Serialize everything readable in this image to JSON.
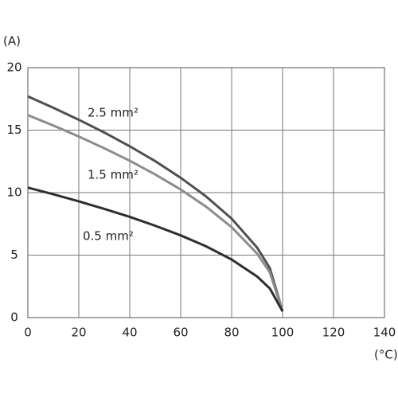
{
  "chart_data": {
    "type": "line",
    "y_label": "(A)",
    "x_label": "(°C)",
    "xlim": [
      0,
      140
    ],
    "xticks": [
      0,
      20,
      40,
      60,
      80,
      100,
      120,
      140
    ],
    "ylim": [
      0,
      20
    ],
    "yticks": [
      0,
      5,
      10,
      15,
      20
    ],
    "grid": true,
    "x": [
      0,
      10,
      20,
      30,
      40,
      50,
      60,
      70,
      80,
      90,
      95,
      100
    ],
    "series": [
      {
        "name": "2.5 mm²",
        "color": "#505050",
        "values": [
          17.7,
          16.79,
          15.83,
          14.81,
          13.71,
          12.52,
          11.19,
          9.69,
          7.92,
          5.6,
          3.96,
          0.5
        ]
      },
      {
        "name": "1.5 mm²",
        "color": "#8c8c8c",
        "values": [
          16.2,
          15.37,
          14.49,
          13.55,
          12.55,
          11.45,
          10.25,
          8.87,
          7.24,
          5.12,
          3.62,
          0.5
        ]
      },
      {
        "name": "0.5 mm²",
        "color": "#2e2e2e",
        "values": [
          10.4,
          9.87,
          9.3,
          8.7,
          8.06,
          7.35,
          6.58,
          5.7,
          4.65,
          3.29,
          2.33,
          0.5
        ]
      }
    ]
  }
}
